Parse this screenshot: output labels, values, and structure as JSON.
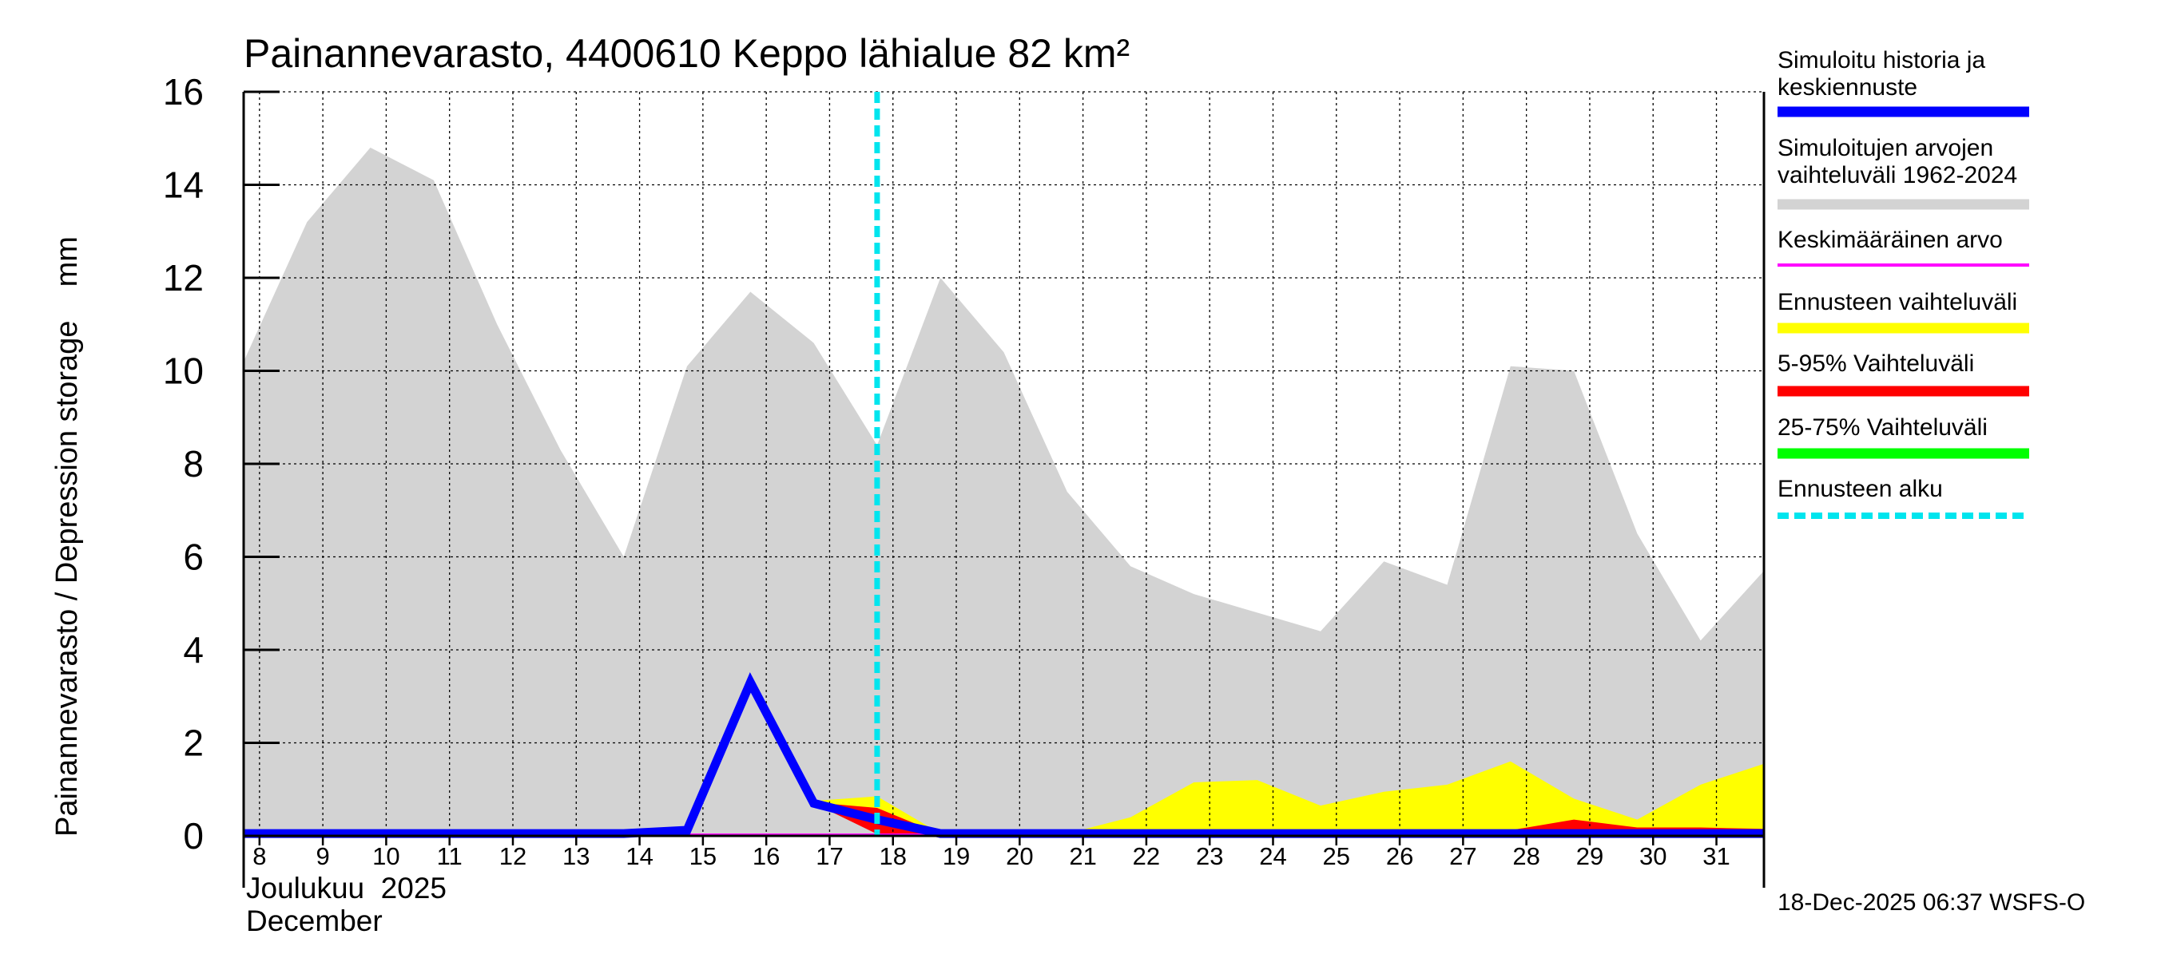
{
  "chart_data": {
    "type": "area",
    "title": "Painannevarasto, 4400610 Keppo lähialue 82 km²",
    "ylabel": "Painannevarasto / Depression storage    mm",
    "xlabel": "",
    "ylim": [
      0,
      16
    ],
    "yticks": [
      0,
      2,
      4,
      6,
      8,
      10,
      12,
      14,
      16
    ],
    "grid": true,
    "x_days": [
      8,
      9,
      10,
      11,
      12,
      13,
      14,
      15,
      16,
      17,
      18,
      19,
      20,
      21,
      22,
      23,
      24,
      25,
      26,
      27,
      28,
      29,
      30,
      31
    ],
    "x_tick_labels": [
      "8",
      "9",
      "10",
      "11",
      "12",
      "13",
      "14",
      "15",
      "16",
      "17",
      "18",
      "19",
      "20",
      "21",
      "22",
      "23",
      "24",
      "25",
      "26",
      "27",
      "28",
      "29",
      "30",
      "31"
    ],
    "x_start": 7.75,
    "x_end": 31.75,
    "month_label_fi": "Joulukuu  2025",
    "month_label_en": "December",
    "forecast_start_day": 17.75,
    "series": [
      {
        "name": "Simuloitujen arvojen vaihteluväli 1962-2024",
        "kind": "band",
        "color": "#d3d3d3",
        "x": [
          7.75,
          8.75,
          9.75,
          10.75,
          11.75,
          12.75,
          13.75,
          14.75,
          15.75,
          16.75,
          17.75,
          18.75,
          19.75,
          20.75,
          21.75,
          22.75,
          23.75,
          24.75,
          25.75,
          26.75,
          27.75,
          28.75,
          29.75,
          30.75,
          31.75
        ],
        "upper": [
          10.2,
          13.2,
          14.8,
          14.1,
          11.0,
          8.3,
          6.0,
          10.1,
          11.7,
          10.6,
          8.4,
          12.0,
          10.4,
          7.4,
          5.8,
          5.2,
          4.8,
          4.4,
          5.9,
          5.4,
          10.1,
          10.0,
          6.5,
          4.2,
          5.7
        ],
        "lower": [
          0,
          0,
          0,
          0,
          0,
          0,
          0,
          0,
          0,
          0,
          0,
          0,
          0,
          0,
          0,
          0,
          0,
          0,
          0,
          0,
          0,
          0,
          0,
          0,
          0
        ]
      },
      {
        "name": "Ennusteen vaihteluväli",
        "kind": "band",
        "color": "#ffff00",
        "x": [
          16.75,
          17.75,
          18.75,
          19.75,
          20.75,
          21.75,
          22.75,
          23.75,
          24.75,
          25.75,
          26.75,
          27.75,
          28.75,
          29.75,
          30.75,
          31.75
        ],
        "upper": [
          0.75,
          0.85,
          0.05,
          0.05,
          0.05,
          0.4,
          1.15,
          1.2,
          0.65,
          0.95,
          1.1,
          1.6,
          0.8,
          0.35,
          1.1,
          1.55
        ],
        "lower": [
          0.7,
          0.05,
          0,
          0,
          0,
          0,
          0,
          0,
          0,
          0,
          0,
          0,
          0,
          0,
          0,
          0
        ]
      },
      {
        "name": "5-95% Vaihteluväli",
        "kind": "band",
        "color": "#ff0000",
        "x": [
          16.75,
          17.75,
          18.75,
          19.75,
          20.75,
          21.75,
          22.75,
          23.75,
          24.75,
          25.75,
          26.75,
          27.75,
          28.75,
          29.75,
          30.75,
          31.75
        ],
        "upper": [
          0.72,
          0.6,
          0.04,
          0.04,
          0.04,
          0.04,
          0.04,
          0.04,
          0.04,
          0.04,
          0.12,
          0.12,
          0.35,
          0.18,
          0.18,
          0.15
        ],
        "lower": [
          0.7,
          0.04,
          0,
          0,
          0,
          0,
          0,
          0,
          0,
          0,
          0,
          0,
          0,
          0,
          0,
          0
        ]
      },
      {
        "name": "25-75% Vaihteluväli",
        "kind": "band",
        "color": "#00ff00",
        "x": [
          16.75,
          17.75,
          18.75,
          31.75
        ],
        "upper": [
          0.71,
          0.4,
          0.02,
          0.02
        ],
        "lower": [
          0.7,
          0.3,
          0.0,
          0.0
        ]
      },
      {
        "name": "Keskimääräinen arvo",
        "kind": "line",
        "color": "#ff00ff",
        "x": [
          7.75,
          31.75
        ],
        "y": [
          0.02,
          0.02
        ]
      },
      {
        "name": "Simuloitu historia ja keskiennuste",
        "kind": "line",
        "color": "#0000ff",
        "x": [
          7.75,
          8.75,
          9.75,
          10.75,
          11.75,
          12.75,
          13.75,
          14.75,
          15.75,
          16.75,
          17.75,
          18.75,
          19.75,
          20.75,
          21.75,
          22.75,
          23.75,
          24.75,
          25.75,
          26.75,
          27.75,
          28.75,
          29.75,
          30.75,
          31.75
        ],
        "y": [
          0.05,
          0.05,
          0.05,
          0.05,
          0.05,
          0.05,
          0.05,
          0.12,
          3.3,
          0.7,
          0.35,
          0.05,
          0.05,
          0.05,
          0.05,
          0.05,
          0.05,
          0.05,
          0.05,
          0.05,
          0.05,
          0.05,
          0.05,
          0.05,
          0.05
        ]
      }
    ],
    "legend": [
      {
        "label": "Simuloitu historia ja keskiennuste",
        "color": "#0000ff",
        "style": "solid"
      },
      {
        "label": "Simuloitujen arvojen vaihteluväli 1962-2024",
        "color": "#d3d3d3",
        "style": "solid"
      },
      {
        "label": "Keskimääräinen arvo",
        "color": "#ff00ff",
        "style": "thin"
      },
      {
        "label": "Ennusteen vaihteluväli",
        "color": "#ffff00",
        "style": "solid"
      },
      {
        "label": "5-95% Vaihteluväli",
        "color": "#ff0000",
        "style": "solid"
      },
      {
        "label": "25-75% Vaihteluväli",
        "color": "#00ff00",
        "style": "solid"
      },
      {
        "label": "Ennusteen alku",
        "color": "#00e5ee",
        "style": "dashed"
      }
    ],
    "legend_placement": "right"
  },
  "footer": {
    "timestamp": "18-Dec-2025 06:37 WSFS-O"
  }
}
